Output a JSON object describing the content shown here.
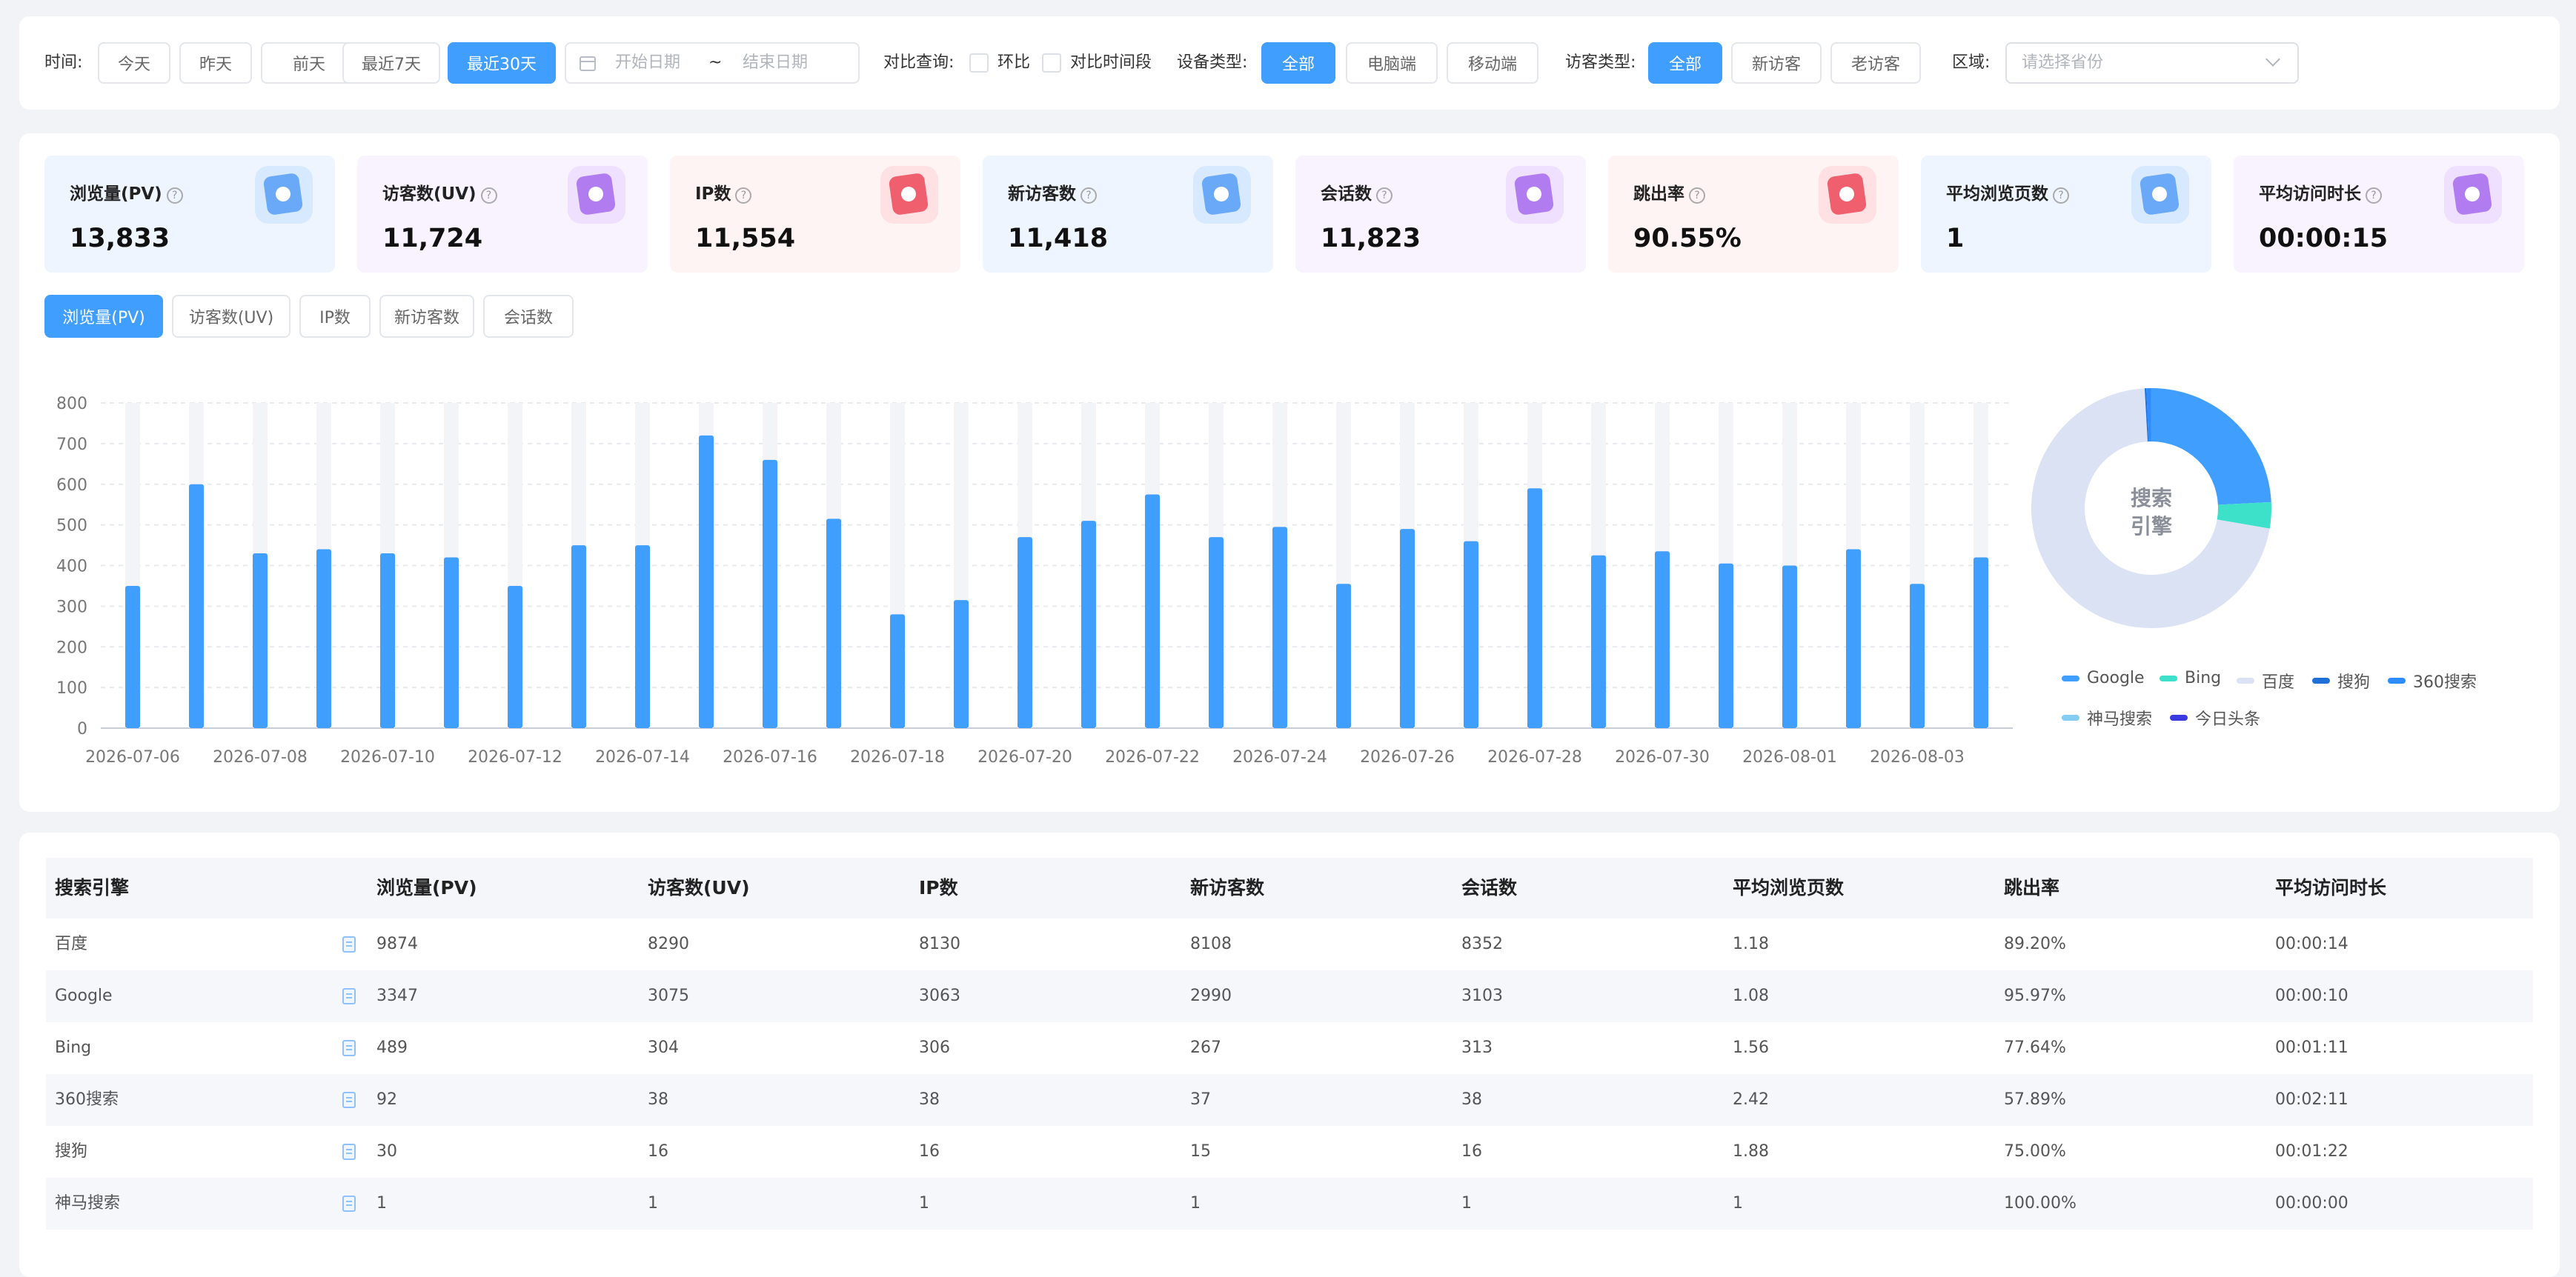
{
  "filters": {
    "time_label": "时间:",
    "time_buttons": [
      "今天",
      "昨天",
      "前天",
      "最近7天",
      "最近30天"
    ],
    "time_active": "最近30天",
    "date_start_placeholder": "开始日期",
    "date_separator": "~",
    "date_end_placeholder": "结束日期",
    "compare_label": "对比查询:",
    "compare_options": [
      "环比",
      "对比时间段"
    ],
    "device_label": "设备类型:",
    "device_buttons": [
      "全部",
      "电脑端",
      "移动端"
    ],
    "device_active": "全部",
    "visitor_label": "访客类型:",
    "visitor_buttons": [
      "全部",
      "新访客",
      "老访客"
    ],
    "visitor_active": "全部",
    "region_label": "区域:",
    "region_placeholder": "请选择省份"
  },
  "metrics": [
    {
      "label": "浏览量(PV)",
      "value": "13,833",
      "icon": "pageview-icon",
      "bg": "#eef5ff",
      "icon_bg": "#d7e9ff",
      "icon_color": "#6aa9f7"
    },
    {
      "label": "访客数(UV)",
      "value": "11,724",
      "icon": "visitor-icon",
      "bg": "#f8f3ff",
      "icon_bg": "#efe0ff",
      "icon_color": "#b07cf0"
    },
    {
      "label": "IP数",
      "value": "11,554",
      "icon": "ip-icon",
      "bg": "#fff4f4",
      "icon_bg": "#ffe0e3",
      "icon_color": "#ef5f6d"
    },
    {
      "label": "新访客数",
      "value": "11,418",
      "icon": "new-visitor-icon",
      "bg": "#eef5ff",
      "icon_bg": "#d7e9ff",
      "icon_color": "#6aa9f7"
    },
    {
      "label": "会话数",
      "value": "11,823",
      "icon": "session-icon",
      "bg": "#f8f3ff",
      "icon_bg": "#efe0ff",
      "icon_color": "#b07cf0"
    },
    {
      "label": "跳出率",
      "value": "90.55%",
      "icon": "bounce-icon",
      "bg": "#fff4f4",
      "icon_bg": "#ffe0e3",
      "icon_color": "#ef5f6d"
    },
    {
      "label": "平均浏览页数",
      "value": "1",
      "icon": "avg-pages-icon",
      "bg": "#eef5ff",
      "icon_bg": "#d7e9ff",
      "icon_color": "#6aa9f7"
    },
    {
      "label": "平均访问时长",
      "value": "00:00:15",
      "icon": "avg-duration-icon",
      "bg": "#f8f3ff",
      "icon_bg": "#efe0ff",
      "icon_color": "#b07cf0"
    }
  ],
  "metric_tabs": [
    "浏览量(PV)",
    "访客数(UV)",
    "IP数",
    "新访客数",
    "会话数"
  ],
  "metric_tab_active": "浏览量(PV)",
  "chart_data": [
    {
      "type": "bar",
      "title": "",
      "xlabel": "",
      "ylabel": "",
      "ylim": [
        0,
        800
      ],
      "yticks": [
        0,
        100,
        200,
        300,
        400,
        500,
        600,
        700,
        800
      ],
      "grid": true,
      "bar_color": "#409eff",
      "track_color": "#f3f4f7",
      "categories": [
        "2026-07-06",
        "2026-07-07",
        "2026-07-08",
        "2026-07-09",
        "2026-07-10",
        "2026-07-11",
        "2026-07-12",
        "2026-07-13",
        "2026-07-14",
        "2026-07-15",
        "2026-07-16",
        "2026-07-17",
        "2026-07-18",
        "2026-07-19",
        "2026-07-20",
        "2026-07-21",
        "2026-07-22",
        "2026-07-23",
        "2026-07-24",
        "2026-07-25",
        "2026-07-26",
        "2026-07-27",
        "2026-07-28",
        "2026-07-29",
        "2026-07-30",
        "2026-07-31",
        "2026-08-01",
        "2026-08-02",
        "2026-08-03",
        "2026-08-04"
      ],
      "x_tick_labels": [
        "2026-07-06",
        "2026-07-08",
        "2026-07-10",
        "2026-07-12",
        "2026-07-14",
        "2026-07-16",
        "2026-07-18",
        "2026-07-20",
        "2026-07-22",
        "2026-07-24",
        "2026-07-26",
        "2026-07-28",
        "2026-07-30",
        "2026-08-01",
        "2026-08-03"
      ],
      "values": [
        350,
        600,
        430,
        440,
        430,
        420,
        350,
        450,
        450,
        720,
        660,
        515,
        280,
        315,
        470,
        510,
        575,
        470,
        495,
        355,
        490,
        460,
        590,
        425,
        435,
        405,
        400,
        440,
        355,
        420
      ]
    },
    {
      "type": "pie",
      "title": "",
      "center_label": "搜索\n引擎",
      "legend_position": "bottom",
      "series": [
        {
          "name": "Google",
          "value": 3347,
          "color": "#409eff"
        },
        {
          "name": "Bing",
          "value": 489,
          "color": "#3de0c8"
        },
        {
          "name": "百度",
          "value": 9874,
          "color": "#dbe2f4"
        },
        {
          "name": "搜狗",
          "value": 30,
          "color": "#1f6fd8"
        },
        {
          "name": "360搜索",
          "value": 92,
          "color": "#2d8cff"
        },
        {
          "name": "神马搜索",
          "value": 1,
          "color": "#86cdf3"
        },
        {
          "name": "今日头条",
          "value": 0,
          "color": "#3a3ae0"
        }
      ]
    }
  ],
  "table": {
    "headers": [
      "搜索引擎",
      "浏览量(PV)",
      "访客数(UV)",
      "IP数",
      "新访客数",
      "会话数",
      "平均浏览页数",
      "跳出率",
      "平均访问时长"
    ],
    "rows": [
      [
        "百度",
        "9874",
        "8290",
        "8130",
        "8108",
        "8352",
        "1.18",
        "89.20%",
        "00:00:14"
      ],
      [
        "Google",
        "3347",
        "3075",
        "3063",
        "2990",
        "3103",
        "1.08",
        "95.97%",
        "00:00:10"
      ],
      [
        "Bing",
        "489",
        "304",
        "306",
        "267",
        "313",
        "1.56",
        "77.64%",
        "00:01:11"
      ],
      [
        "360搜索",
        "92",
        "38",
        "38",
        "37",
        "38",
        "2.42",
        "57.89%",
        "00:02:11"
      ],
      [
        "搜狗",
        "30",
        "16",
        "16",
        "15",
        "16",
        "1.88",
        "75.00%",
        "00:01:22"
      ],
      [
        "神马搜索",
        "1",
        "1",
        "1",
        "1",
        "1",
        "1",
        "100.00%",
        "00:00:00"
      ]
    ]
  }
}
